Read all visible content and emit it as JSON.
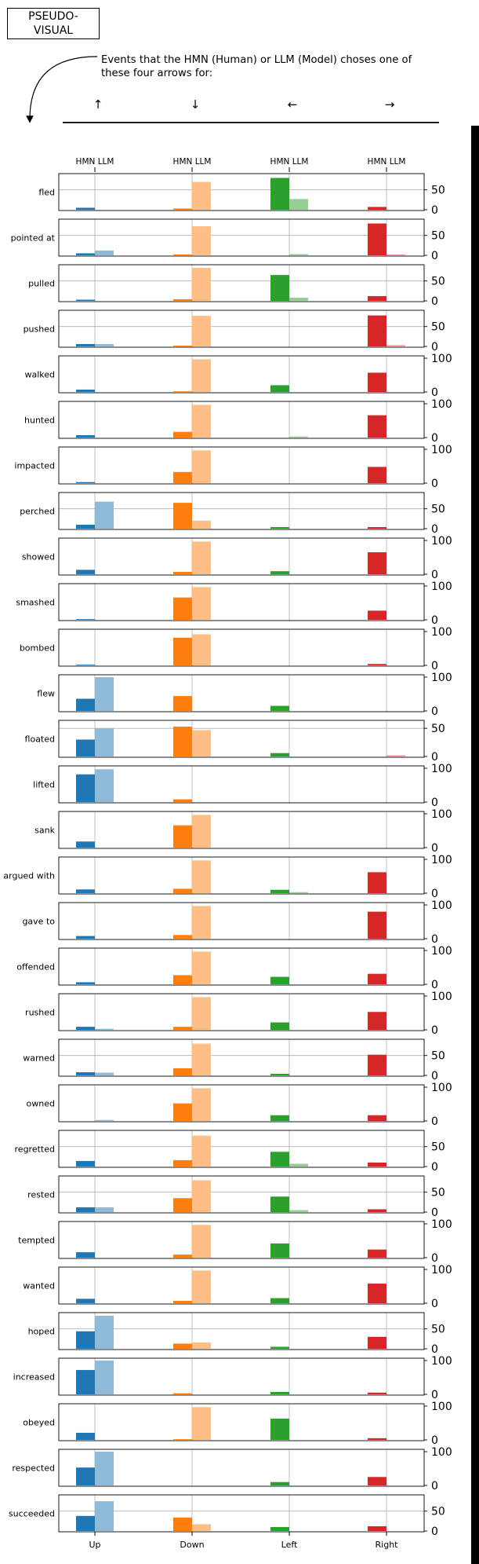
{
  "header": {
    "title_line1": "PSEUDO-",
    "title_line2": "VISUAL",
    "subtitle": "Events that the HMN (Human) or LLM (Model) choses one of these four arrows for:",
    "arrows": [
      "↑",
      "↓",
      "←",
      "→"
    ]
  },
  "chart_data": {
    "type": "bar",
    "categories": [
      "Up",
      "Down",
      "Left",
      "Right"
    ],
    "column_header": [
      "HMN LLM",
      "HMN LLM",
      "HMN LLM",
      "HMN LLM"
    ],
    "series": [
      {
        "name": "HMN",
        "colors": [
          "#1f77b4",
          "#ff7f0e",
          "#2ca02c",
          "#d62728"
        ]
      },
      {
        "name": "LLM",
        "colors": [
          "#8fbbd9",
          "#ffbf86",
          "#95cf95",
          "#eb9394"
        ]
      }
    ],
    "grid": "vertical at category centres, horizontal at middle tick",
    "panels": [
      {
        "label": "fled",
        "ymax": 85,
        "yticks": [
          0,
          50
        ],
        "hmn": [
          5,
          3,
          80,
          7
        ],
        "llm": [
          0,
          70,
          27,
          0
        ]
      },
      {
        "label": "pointed at",
        "ymax": 85,
        "yticks": [
          0,
          50
        ],
        "hmn": [
          5,
          2,
          0,
          80
        ],
        "llm": [
          12,
          73,
          3,
          2
        ]
      },
      {
        "label": "pulled",
        "ymax": 85,
        "yticks": [
          0,
          50
        ],
        "hmn": [
          3,
          4,
          65,
          12
        ],
        "llm": [
          0,
          83,
          8,
          0
        ]
      },
      {
        "label": "pushed",
        "ymax": 85,
        "yticks": [
          0,
          50
        ],
        "hmn": [
          6,
          2,
          0,
          78
        ],
        "llm": [
          6,
          77,
          0,
          3
        ]
      },
      {
        "label": "walked",
        "ymax": 100,
        "yticks": [
          0,
          100
        ],
        "hmn": [
          7,
          2,
          20,
          57
        ],
        "llm": [
          0,
          97,
          0,
          0
        ]
      },
      {
        "label": "hunted",
        "ymax": 100,
        "yticks": [
          0,
          100
        ],
        "hmn": [
          7,
          17,
          0,
          66
        ],
        "llm": [
          0,
          97,
          3,
          0
        ]
      },
      {
        "label": "impacted",
        "ymax": 100,
        "yticks": [
          0,
          100
        ],
        "hmn": [
          3,
          33,
          0,
          48
        ],
        "llm": [
          0,
          97,
          0,
          0
        ]
      },
      {
        "label": "perched",
        "ymax": 85,
        "yticks": [
          0,
          50
        ],
        "hmn": [
          10,
          65,
          4,
          4
        ],
        "llm": [
          68,
          20,
          0,
          0
        ]
      },
      {
        "label": "showed",
        "ymax": 100,
        "yticks": [
          0,
          100
        ],
        "hmn": [
          13,
          7,
          9,
          65
        ],
        "llm": [
          0,
          97,
          0,
          0
        ]
      },
      {
        "label": "smashed",
        "ymax": 100,
        "yticks": [
          0,
          100
        ],
        "hmn": [
          2,
          66,
          0,
          27
        ],
        "llm": [
          0,
          97,
          0,
          0
        ]
      },
      {
        "label": "bombed",
        "ymax": 100,
        "yticks": [
          0,
          100
        ],
        "hmn": [
          2,
          82,
          0,
          4
        ],
        "llm": [
          0,
          92,
          0,
          0
        ]
      },
      {
        "label": "flew",
        "ymax": 100,
        "yticks": [
          0,
          100
        ],
        "hmn": [
          36,
          44,
          15,
          0
        ],
        "llm": [
          100,
          0,
          0,
          0
        ]
      },
      {
        "label": "floated",
        "ymax": 60,
        "yticks": [
          0,
          50
        ],
        "hmn": [
          30,
          53,
          6,
          0
        ],
        "llm": [
          50,
          47,
          0,
          2
        ]
      },
      {
        "label": "lifted",
        "ymax": 100,
        "yticks": [
          0,
          100
        ],
        "hmn": [
          82,
          8,
          0,
          0
        ],
        "llm": [
          97,
          0,
          0,
          0
        ]
      },
      {
        "label": "sank",
        "ymax": 100,
        "yticks": [
          0,
          100
        ],
        "hmn": [
          18,
          66,
          0,
          0
        ],
        "llm": [
          0,
          97,
          0,
          0
        ]
      },
      {
        "label": "argued with",
        "ymax": 100,
        "yticks": [
          0,
          100
        ],
        "hmn": [
          11,
          13,
          10,
          62
        ],
        "llm": [
          0,
          97,
          3,
          0
        ]
      },
      {
        "label": "gave to",
        "ymax": 100,
        "yticks": [
          0,
          100
        ],
        "hmn": [
          8,
          11,
          0,
          80
        ],
        "llm": [
          0,
          97,
          0,
          0
        ]
      },
      {
        "label": "offended",
        "ymax": 100,
        "yticks": [
          0,
          100
        ],
        "hmn": [
          6,
          27,
          22,
          31
        ],
        "llm": [
          0,
          97,
          0,
          0
        ]
      },
      {
        "label": "rushed",
        "ymax": 100,
        "yticks": [
          0,
          100
        ],
        "hmn": [
          9,
          9,
          22,
          53
        ],
        "llm": [
          3,
          97,
          0,
          0
        ]
      },
      {
        "label": "warned",
        "ymax": 85,
        "yticks": [
          0,
          50
        ],
        "hmn": [
          8,
          18,
          4,
          52
        ],
        "llm": [
          7,
          80,
          0,
          0
        ]
      },
      {
        "label": "owned",
        "ymax": 100,
        "yticks": [
          0,
          100
        ],
        "hmn": [
          0,
          52,
          17,
          17
        ],
        "llm": [
          3,
          97,
          0,
          0
        ]
      },
      {
        "label": "regretted",
        "ymax": 85,
        "yticks": [
          0,
          50
        ],
        "hmn": [
          14,
          16,
          37,
          10
        ],
        "llm": [
          0,
          78,
          7,
          0
        ]
      },
      {
        "label": "rested",
        "ymax": 85,
        "yticks": [
          0,
          50
        ],
        "hmn": [
          12,
          35,
          39,
          7
        ],
        "llm": [
          12,
          80,
          5,
          0
        ]
      },
      {
        "label": "tempted",
        "ymax": 100,
        "yticks": [
          0,
          100
        ],
        "hmn": [
          16,
          9,
          42,
          24
        ],
        "llm": [
          0,
          97,
          0,
          0
        ]
      },
      {
        "label": "wanted",
        "ymax": 100,
        "yticks": [
          0,
          100
        ],
        "hmn": [
          13,
          7,
          15,
          58
        ],
        "llm": [
          0,
          97,
          0,
          0
        ]
      },
      {
        "label": "hoped",
        "ymax": 85,
        "yticks": [
          0,
          50
        ],
        "hmn": [
          44,
          13,
          5,
          30
        ],
        "llm": [
          83,
          16,
          0,
          0
        ]
      },
      {
        "label": "increased",
        "ymax": 100,
        "yticks": [
          0,
          100
        ],
        "hmn": [
          72,
          3,
          7,
          5
        ],
        "llm": [
          100,
          0,
          0,
          0
        ]
      },
      {
        "label": "obeyed",
        "ymax": 100,
        "yticks": [
          0,
          100
        ],
        "hmn": [
          21,
          2,
          63,
          5
        ],
        "llm": [
          0,
          97,
          0,
          0
        ]
      },
      {
        "label": "respected",
        "ymax": 100,
        "yticks": [
          0,
          100
        ],
        "hmn": [
          53,
          0,
          10,
          25
        ],
        "llm": [
          100,
          0,
          0,
          0
        ]
      },
      {
        "label": "succeeded",
        "ymax": 85,
        "yticks": [
          0,
          50
        ],
        "hmn": [
          38,
          34,
          10,
          12
        ],
        "llm": [
          75,
          17,
          0,
          0
        ]
      }
    ]
  }
}
